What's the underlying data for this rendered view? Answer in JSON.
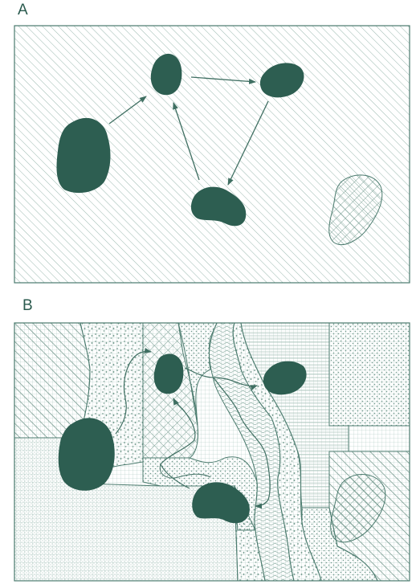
{
  "figure": {
    "panel_a": {
      "label": "A"
    },
    "panel_b": {
      "label": "B"
    }
  },
  "colors": {
    "patch": "#2d5e51",
    "line": "#3f6f62",
    "background": "#ffffff"
  }
}
